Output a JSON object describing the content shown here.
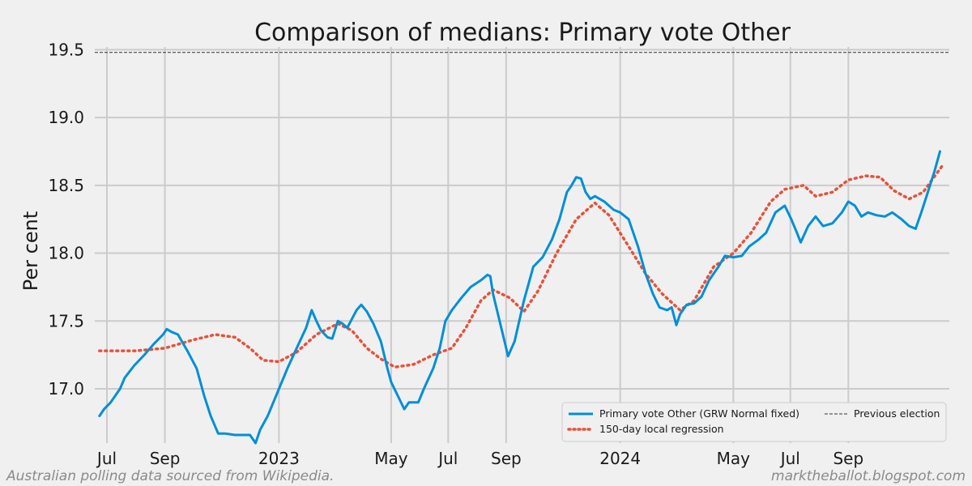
{
  "chart_data": {
    "type": "line",
    "title": "Comparison of medians: Primary vote Other",
    "xlabel": "",
    "ylabel": "Per cent",
    "ylim": [
      16.6,
      19.52
    ],
    "xlim": [
      "2022-06-18",
      "2024-12-18"
    ],
    "grid": true,
    "legend_position": "bottom-right",
    "y_ticks": [
      17.0,
      17.5,
      18.0,
      18.5,
      19.0,
      19.5
    ],
    "y_tick_labels": [
      "17.0",
      "17.5",
      "18.0",
      "18.5",
      "19.0",
      "19.5"
    ],
    "x_ticks": [
      {
        "date": "2022-07-01",
        "label": "Jul"
      },
      {
        "date": "2022-09-01",
        "label": "Sep"
      },
      {
        "date": "2023-01-01",
        "label": "2023"
      },
      {
        "date": "2023-05-01",
        "label": "May"
      },
      {
        "date": "2023-07-01",
        "label": "Jul"
      },
      {
        "date": "2023-09-01",
        "label": "Sep"
      },
      {
        "date": "2024-01-01",
        "label": "2024"
      },
      {
        "date": "2024-05-01",
        "label": "May"
      },
      {
        "date": "2024-07-01",
        "label": "Jul"
      },
      {
        "date": "2024-09-01",
        "label": "Sep"
      }
    ],
    "series": [
      {
        "name": "Primary vote Other (GRW Normal fixed)",
        "style": "solid",
        "color": "#008fd5",
        "points": [
          [
            "2022-06-23",
            16.8
          ],
          [
            "2022-06-28",
            16.85
          ],
          [
            "2022-07-05",
            16.9
          ],
          [
            "2022-07-15",
            17.0
          ],
          [
            "2022-07-20",
            17.08
          ],
          [
            "2022-07-30",
            17.17
          ],
          [
            "2022-08-10",
            17.25
          ],
          [
            "2022-08-20",
            17.33
          ],
          [
            "2022-08-30",
            17.4
          ],
          [
            "2022-09-03",
            17.44
          ],
          [
            "2022-09-08",
            17.42
          ],
          [
            "2022-09-15",
            17.4
          ],
          [
            "2022-09-25",
            17.28
          ],
          [
            "2022-10-05",
            17.15
          ],
          [
            "2022-10-13",
            16.95
          ],
          [
            "2022-10-20",
            16.8
          ],
          [
            "2022-10-28",
            16.67
          ],
          [
            "2022-11-05",
            16.67
          ],
          [
            "2022-11-15",
            16.66
          ],
          [
            "2022-11-25",
            16.66
          ],
          [
            "2022-12-01",
            16.66
          ],
          [
            "2022-12-07",
            16.6
          ],
          [
            "2022-12-12",
            16.7
          ],
          [
            "2022-12-20",
            16.8
          ],
          [
            "2023-01-01",
            17.0
          ],
          [
            "2023-01-10",
            17.15
          ],
          [
            "2023-01-20",
            17.3
          ],
          [
            "2023-01-30",
            17.45
          ],
          [
            "2023-02-05",
            17.58
          ],
          [
            "2023-02-10",
            17.5
          ],
          [
            "2023-02-15",
            17.43
          ],
          [
            "2023-02-22",
            17.38
          ],
          [
            "2023-02-27",
            17.37
          ],
          [
            "2023-03-05",
            17.5
          ],
          [
            "2023-03-10",
            17.48
          ],
          [
            "2023-03-15",
            17.45
          ],
          [
            "2023-03-25",
            17.58
          ],
          [
            "2023-03-30",
            17.62
          ],
          [
            "2023-04-05",
            17.57
          ],
          [
            "2023-04-12",
            17.48
          ],
          [
            "2023-04-20",
            17.35
          ],
          [
            "2023-04-27",
            17.15
          ],
          [
            "2023-05-01",
            17.05
          ],
          [
            "2023-05-08",
            16.95
          ],
          [
            "2023-05-15",
            16.85
          ],
          [
            "2023-05-20",
            16.9
          ],
          [
            "2023-05-25",
            16.9
          ],
          [
            "2023-05-30",
            16.9
          ],
          [
            "2023-06-05",
            17.0
          ],
          [
            "2023-06-15",
            17.15
          ],
          [
            "2023-06-22",
            17.3
          ],
          [
            "2023-06-28",
            17.5
          ],
          [
            "2023-07-05",
            17.58
          ],
          [
            "2023-07-15",
            17.67
          ],
          [
            "2023-07-25",
            17.75
          ],
          [
            "2023-08-05",
            17.8
          ],
          [
            "2023-08-12",
            17.84
          ],
          [
            "2023-08-15",
            17.83
          ],
          [
            "2023-08-18",
            17.7
          ],
          [
            "2023-08-25",
            17.5
          ],
          [
            "2023-09-01",
            17.3
          ],
          [
            "2023-09-03",
            17.24
          ],
          [
            "2023-09-10",
            17.35
          ],
          [
            "2023-09-20",
            17.65
          ],
          [
            "2023-09-30",
            17.9
          ],
          [
            "2023-10-10",
            17.97
          ],
          [
            "2023-10-20",
            18.1
          ],
          [
            "2023-10-28",
            18.25
          ],
          [
            "2023-11-05",
            18.45
          ],
          [
            "2023-11-10",
            18.5
          ],
          [
            "2023-11-15",
            18.56
          ],
          [
            "2023-11-20",
            18.55
          ],
          [
            "2023-11-25",
            18.45
          ],
          [
            "2023-11-30",
            18.4
          ],
          [
            "2023-12-05",
            18.42
          ],
          [
            "2023-12-15",
            18.38
          ],
          [
            "2023-12-25",
            18.32
          ],
          [
            "2024-01-01",
            18.3
          ],
          [
            "2024-01-10",
            18.25
          ],
          [
            "2024-01-20",
            18.05
          ],
          [
            "2024-01-28",
            17.85
          ],
          [
            "2024-02-05",
            17.7
          ],
          [
            "2024-02-12",
            17.6
          ],
          [
            "2024-02-20",
            17.58
          ],
          [
            "2024-02-25",
            17.6
          ],
          [
            "2024-03-01",
            17.47
          ],
          [
            "2024-03-05",
            17.55
          ],
          [
            "2024-03-12",
            17.62
          ],
          [
            "2024-03-20",
            17.63
          ],
          [
            "2024-03-28",
            17.68
          ],
          [
            "2024-04-05",
            17.8
          ],
          [
            "2024-04-15",
            17.9
          ],
          [
            "2024-04-22",
            17.98
          ],
          [
            "2024-05-01",
            17.97
          ],
          [
            "2024-05-10",
            17.98
          ],
          [
            "2024-05-18",
            18.05
          ],
          [
            "2024-05-28",
            18.1
          ],
          [
            "2024-06-05",
            18.15
          ],
          [
            "2024-06-15",
            18.3
          ],
          [
            "2024-06-25",
            18.35
          ],
          [
            "2024-07-02",
            18.25
          ],
          [
            "2024-07-08",
            18.15
          ],
          [
            "2024-07-12",
            18.08
          ],
          [
            "2024-07-20",
            18.2
          ],
          [
            "2024-07-28",
            18.27
          ],
          [
            "2024-08-05",
            18.2
          ],
          [
            "2024-08-15",
            18.22
          ],
          [
            "2024-08-25",
            18.3
          ],
          [
            "2024-09-01",
            18.38
          ],
          [
            "2024-09-08",
            18.35
          ],
          [
            "2024-09-15",
            18.27
          ],
          [
            "2024-09-22",
            18.3
          ],
          [
            "2024-10-01",
            18.28
          ],
          [
            "2024-10-10",
            18.27
          ],
          [
            "2024-10-18",
            18.3
          ],
          [
            "2024-10-28",
            18.25
          ],
          [
            "2024-11-05",
            18.2
          ],
          [
            "2024-11-12",
            18.18
          ],
          [
            "2024-11-18",
            18.3
          ],
          [
            "2024-11-25",
            18.45
          ],
          [
            "2024-12-02",
            18.6
          ],
          [
            "2024-12-08",
            18.75
          ]
        ]
      },
      {
        "name": "150-day local regression",
        "style": "dotted",
        "color": "#e5533c",
        "points": [
          [
            "2022-06-23",
            17.28
          ],
          [
            "2022-08-01",
            17.28
          ],
          [
            "2022-09-01",
            17.3
          ],
          [
            "2022-10-01",
            17.36
          ],
          [
            "2022-10-25",
            17.4
          ],
          [
            "2022-11-15",
            17.38
          ],
          [
            "2022-12-01",
            17.3
          ],
          [
            "2022-12-15",
            17.21
          ],
          [
            "2023-01-01",
            17.2
          ],
          [
            "2023-01-20",
            17.27
          ],
          [
            "2023-02-10",
            17.4
          ],
          [
            "2023-03-05",
            17.48
          ],
          [
            "2023-03-20",
            17.43
          ],
          [
            "2023-04-05",
            17.3
          ],
          [
            "2023-04-20",
            17.22
          ],
          [
            "2023-05-05",
            17.16
          ],
          [
            "2023-05-25",
            17.18
          ],
          [
            "2023-06-15",
            17.25
          ],
          [
            "2023-07-05",
            17.3
          ],
          [
            "2023-07-20",
            17.45
          ],
          [
            "2023-08-05",
            17.65
          ],
          [
            "2023-08-18",
            17.73
          ],
          [
            "2023-09-05",
            17.67
          ],
          [
            "2023-09-20",
            17.57
          ],
          [
            "2023-10-05",
            17.72
          ],
          [
            "2023-10-25",
            18.0
          ],
          [
            "2023-11-15",
            18.25
          ],
          [
            "2023-12-05",
            18.37
          ],
          [
            "2023-12-20",
            18.28
          ],
          [
            "2024-01-10",
            18.05
          ],
          [
            "2024-01-28",
            17.85
          ],
          [
            "2024-02-15",
            17.7
          ],
          [
            "2024-03-05",
            17.58
          ],
          [
            "2024-03-20",
            17.65
          ],
          [
            "2024-04-10",
            17.9
          ],
          [
            "2024-05-01",
            18.0
          ],
          [
            "2024-05-20",
            18.15
          ],
          [
            "2024-06-10",
            18.38
          ],
          [
            "2024-06-25",
            18.47
          ],
          [
            "2024-07-15",
            18.5
          ],
          [
            "2024-07-28",
            18.42
          ],
          [
            "2024-08-15",
            18.45
          ],
          [
            "2024-09-01",
            18.54
          ],
          [
            "2024-09-20",
            18.57
          ],
          [
            "2024-10-05",
            18.56
          ],
          [
            "2024-10-20",
            18.46
          ],
          [
            "2024-11-05",
            18.4
          ],
          [
            "2024-11-20",
            18.45
          ],
          [
            "2024-12-10",
            18.64
          ]
        ]
      },
      {
        "name": "Previous election",
        "style": "dashed",
        "color": "#333333",
        "y": 19.48
      }
    ]
  },
  "footer": {
    "left": "Australian polling data sourced from Wikipedia.",
    "right": "marktheballot.blogspot.com"
  }
}
